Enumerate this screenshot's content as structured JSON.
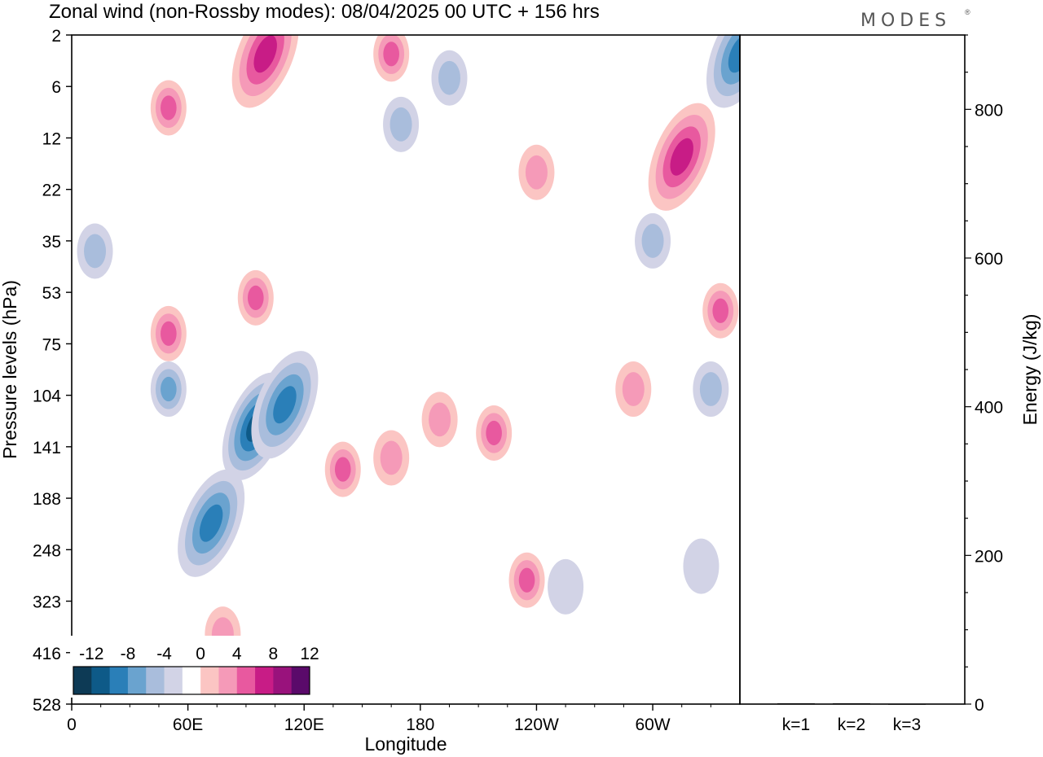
{
  "header": {
    "title": "Zonal wind (non-Rossby modes):  08/04/2025  00 UTC  + 156 hrs",
    "logo": "MODES"
  },
  "chart_data": [
    {
      "type": "heatmap",
      "xlabel": "Longitude",
      "ylabel": "Pressure levels (hPa)",
      "x_ticks": [
        {
          "label": "0",
          "lon": 0
        },
        {
          "label": "60E",
          "lon": 60
        },
        {
          "label": "120E",
          "lon": 120
        },
        {
          "label": "180",
          "lon": 180
        },
        {
          "label": "120W",
          "lon": 240
        },
        {
          "label": "60W",
          "lon": 300
        }
      ],
      "xlim": [
        0,
        345
      ],
      "y_ticks": [
        "2",
        "6",
        "12",
        "22",
        "35",
        "53",
        "75",
        "104",
        "141",
        "188",
        "248",
        "323",
        "416",
        "528"
      ],
      "colorbar": {
        "labels": [
          "-12",
          "-8",
          "-4",
          "0",
          "4",
          "8",
          "12"
        ],
        "levels": [
          -14,
          -12,
          -10,
          -8,
          -6,
          -4,
          -2,
          2,
          4,
          6,
          8,
          10,
          12,
          14
        ],
        "colors": [
          "#0d3a55",
          "#0e5a88",
          "#2a7fb8",
          "#6aa3cf",
          "#a9bddc",
          "#d2d3e6",
          "#ffffff",
          "#fbc5c3",
          "#f59ab8",
          "#e8599f",
          "#c81c86",
          "#99127c",
          "#5a0a6a"
        ]
      },
      "features": [
        {
          "lon": 72,
          "p": 215,
          "value": -9
        },
        {
          "lon": 95,
          "p": 125,
          "value": -10
        },
        {
          "lon": 110,
          "p": 110,
          "value": -8
        },
        {
          "lon": 50,
          "p": 100,
          "value": -6
        },
        {
          "lon": 345,
          "p": 3,
          "value": -9
        },
        {
          "lon": 195,
          "p": 5,
          "value": -5
        },
        {
          "lon": 170,
          "p": 10,
          "value": -4
        },
        {
          "lon": 12,
          "p": 38,
          "value": -4
        },
        {
          "lon": 300,
          "p": 35,
          "value": -5
        },
        {
          "lon": 330,
          "p": 100,
          "value": -5
        },
        {
          "lon": 255,
          "p": 300,
          "value": -3
        },
        {
          "lon": 325,
          "p": 270,
          "value": -3
        },
        {
          "lon": 140,
          "p": 160,
          "value": 6
        },
        {
          "lon": 165,
          "p": 150,
          "value": 5
        },
        {
          "lon": 190,
          "p": 120,
          "value": 5
        },
        {
          "lon": 218,
          "p": 130,
          "value": 7
        },
        {
          "lon": 235,
          "p": 290,
          "value": 6
        },
        {
          "lon": 290,
          "p": 100,
          "value": 5
        },
        {
          "lon": 95,
          "p": 55,
          "value": 6
        },
        {
          "lon": 50,
          "p": 70,
          "value": 7
        },
        {
          "lon": 100,
          "p": 3,
          "value": 9
        },
        {
          "lon": 50,
          "p": 8,
          "value": 7
        },
        {
          "lon": 165,
          "p": 3,
          "value": 6
        },
        {
          "lon": 315,
          "p": 15,
          "value": 8
        },
        {
          "lon": 335,
          "p": 60,
          "value": 6
        },
        {
          "lon": 240,
          "p": 18,
          "value": 5
        },
        {
          "lon": 78,
          "p": 380,
          "value": 5
        }
      ]
    },
    {
      "type": "bar",
      "categories": [
        "k=1",
        "k=2",
        "k=3"
      ],
      "values": [
        1,
        1,
        0.5
      ],
      "ylabel": "Energy (J/kg)",
      "ylim": [
        0,
        900
      ],
      "y_ticks": [
        0,
        200,
        400,
        600,
        800
      ]
    }
  ]
}
